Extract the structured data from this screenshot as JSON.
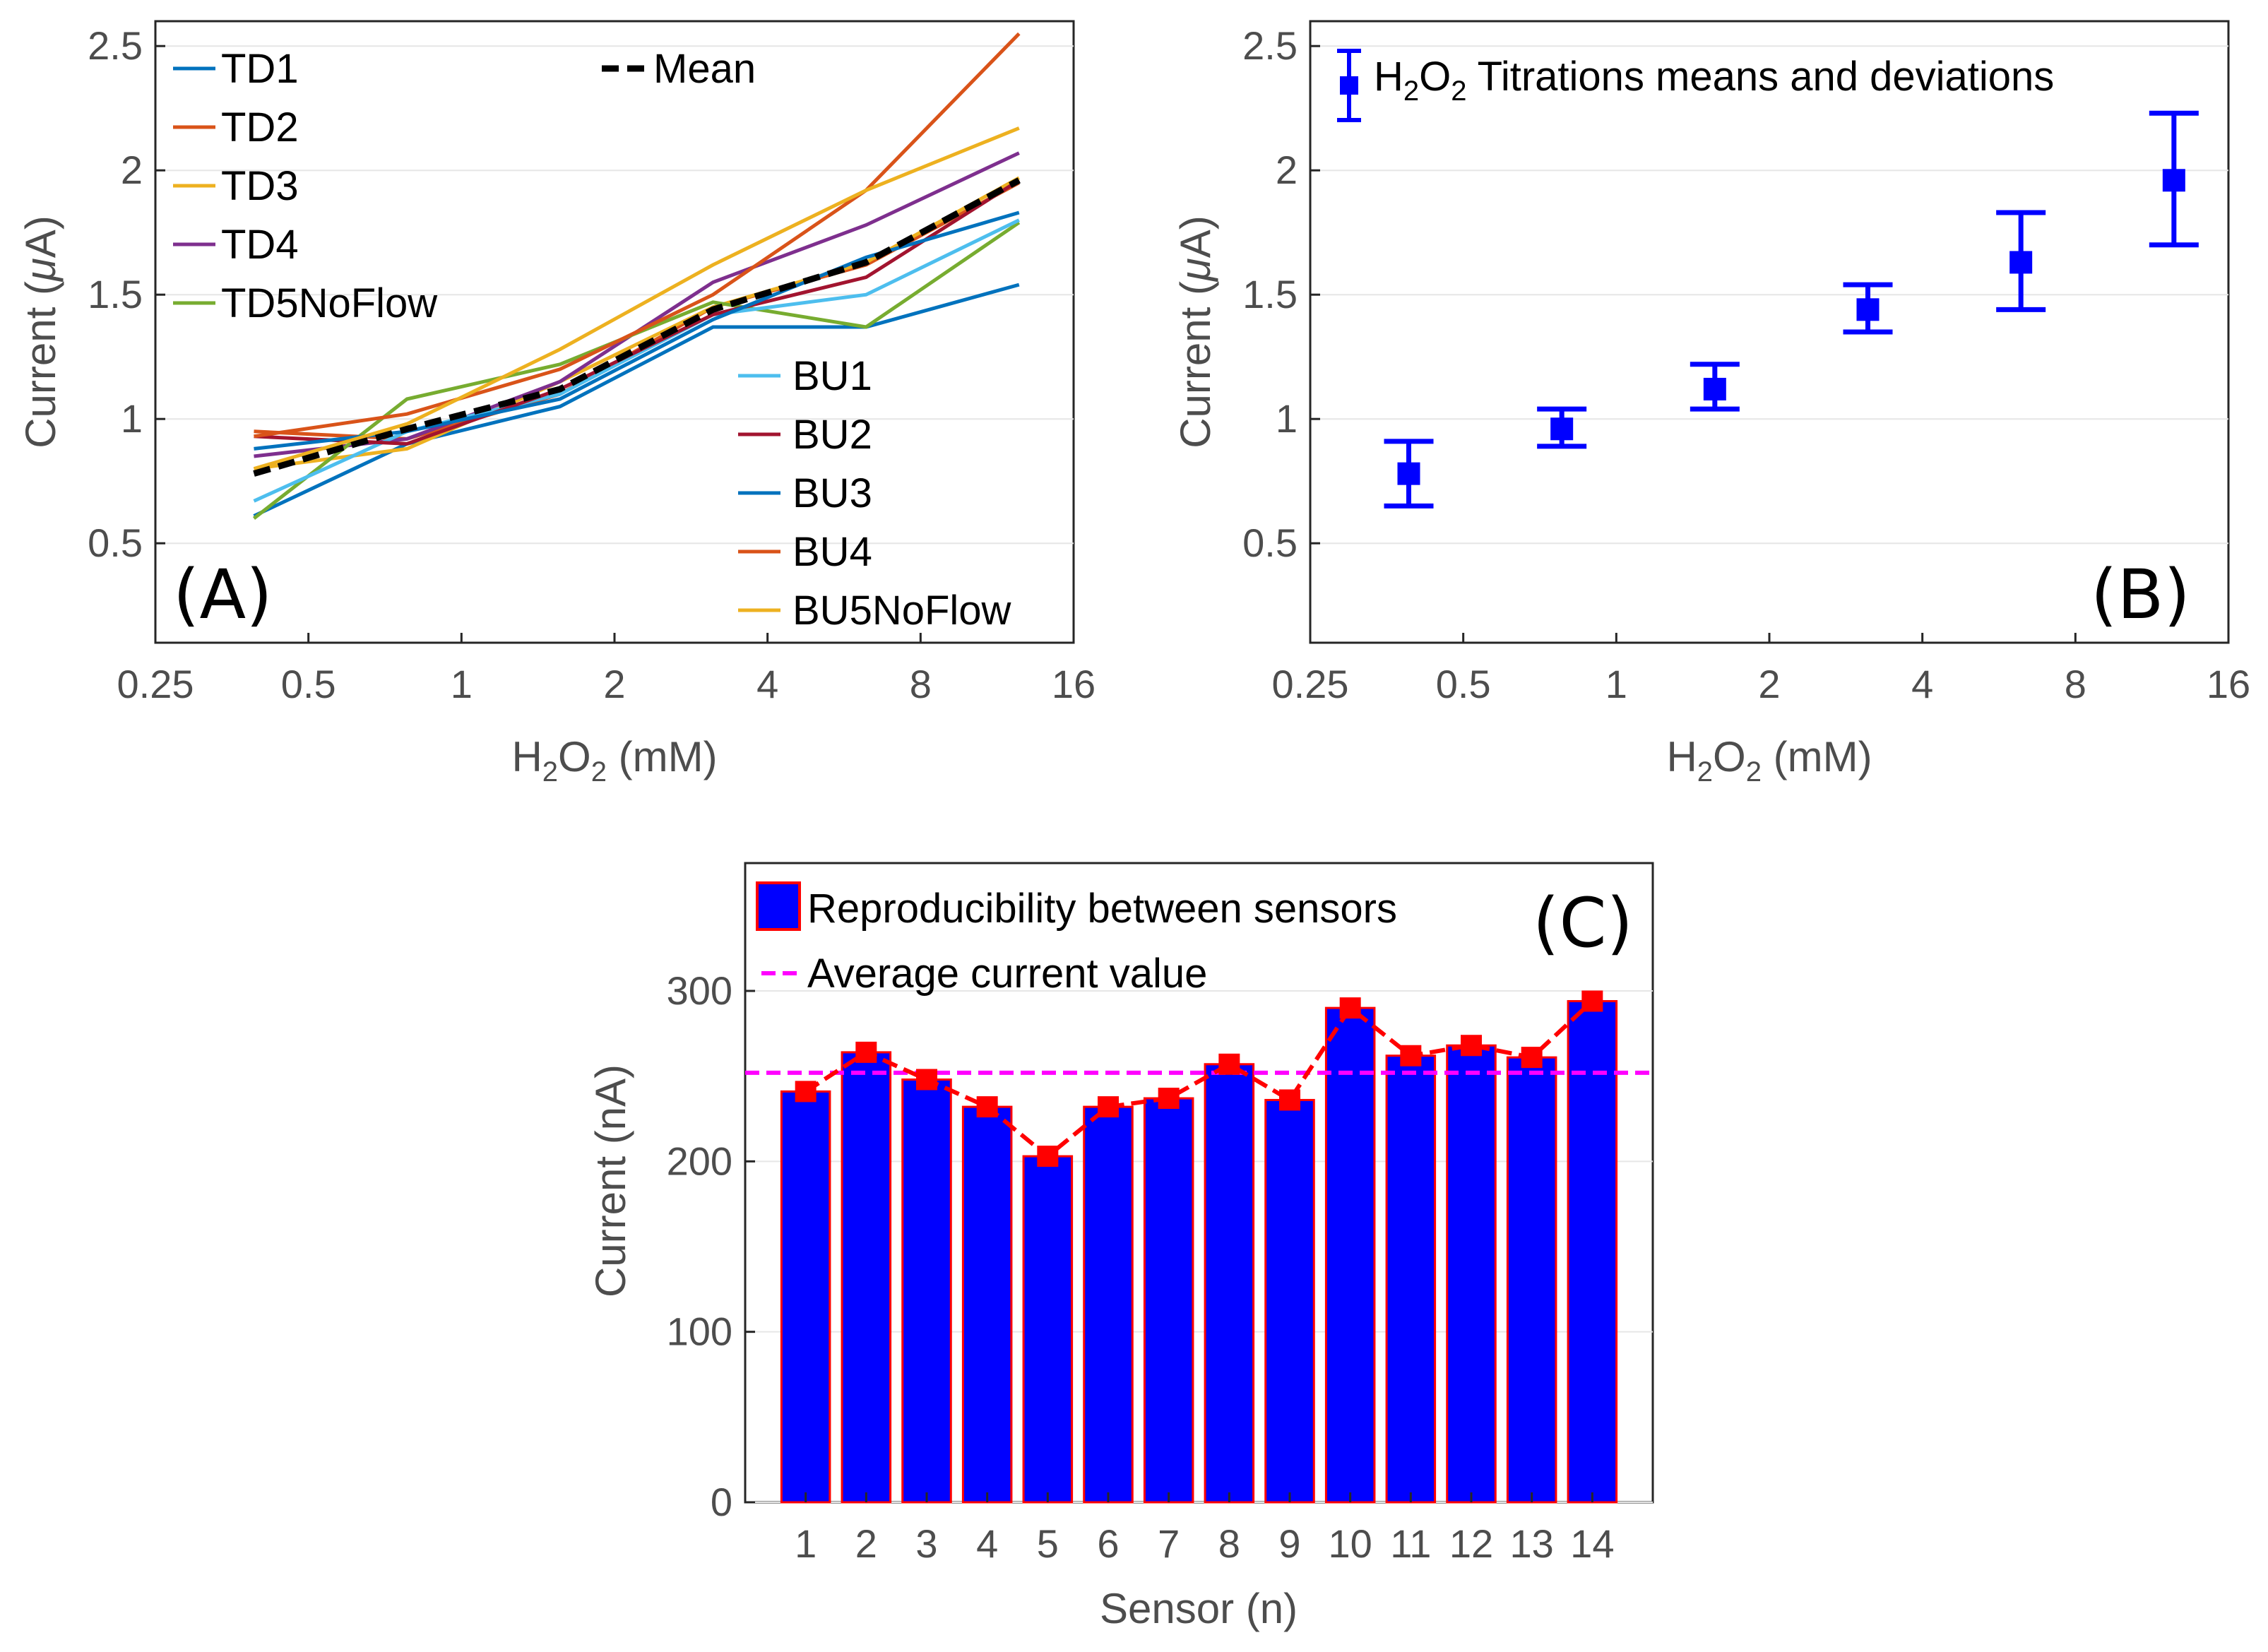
{
  "chart_data": [
    {
      "type": "line",
      "panel_label": "(A)",
      "xscale": "log2",
      "xlim": [
        0.25,
        16
      ],
      "ylim": [
        0.1,
        2.6
      ],
      "xticks": [
        "0.25",
        "0.5",
        "1",
        "2",
        "4",
        "8",
        "16"
      ],
      "yticks": [
        "0.5",
        "1",
        "1.5",
        "2",
        "2.5"
      ],
      "xlabel_main": "H",
      "xlabel_sub1": "2",
      "xlabel_mid": "O",
      "xlabel_sub2": "2",
      "xlabel_unit": " (mM)",
      "ylabel_pre": "Current (",
      "ylabel_mu": "μ",
      "ylabel_post": "A)",
      "x": [
        0.390625,
        0.78125,
        1.5625,
        3.125,
        6.25,
        12.5
      ],
      "series": [
        {
          "name": "TD1",
          "color": "#0072BD",
          "values": [
            0.61,
            0.9,
            1.05,
            1.37,
            1.37,
            1.54
          ]
        },
        {
          "name": "TD2",
          "color": "#D95319",
          "values": [
            0.95,
            0.92,
            1.1,
            1.45,
            1.62,
            1.95
          ]
        },
        {
          "name": "TD3",
          "color": "#EDB120",
          "values": [
            0.8,
            0.88,
            1.15,
            1.45,
            1.63,
            1.97
          ]
        },
        {
          "name": "TD4",
          "color": "#7E2F8E",
          "values": [
            0.85,
            0.92,
            1.15,
            1.55,
            1.78,
            2.07
          ]
        },
        {
          "name": "TD5NoFlow",
          "color": "#77AC30",
          "values": [
            0.6,
            1.08,
            1.22,
            1.47,
            1.37,
            1.79
          ]
        },
        {
          "name": "BU1",
          "color": "#4DBEEE",
          "values": [
            0.67,
            0.95,
            1.1,
            1.42,
            1.5,
            1.8
          ]
        },
        {
          "name": "BU2",
          "color": "#A2142F",
          "values": [
            0.93,
            0.9,
            1.12,
            1.42,
            1.57,
            1.96
          ]
        },
        {
          "name": "BU3",
          "color": "#0072BD",
          "values": [
            0.88,
            0.95,
            1.08,
            1.4,
            1.65,
            1.83
          ]
        },
        {
          "name": "BU4",
          "color": "#D95319",
          "values": [
            0.93,
            1.02,
            1.2,
            1.5,
            1.92,
            2.55
          ]
        },
        {
          "name": "BU5NoFlow",
          "color": "#EDB120",
          "values": [
            0.8,
            0.98,
            1.28,
            1.62,
            1.92,
            2.17
          ]
        }
      ],
      "mean": {
        "name": "Mean",
        "color": "#000000",
        "values": [
          0.78,
          0.96,
          1.12,
          1.44,
          1.63,
          1.96
        ]
      }
    },
    {
      "type": "errorbar",
      "panel_label": "(B)",
      "xscale": "log2",
      "xlim": [
        0.25,
        16
      ],
      "ylim": [
        0.1,
        2.6
      ],
      "xticks": [
        "0.25",
        "0.5",
        "1",
        "2",
        "4",
        "8",
        "16"
      ],
      "yticks": [
        "0.5",
        "1",
        "1.5",
        "2",
        "2.5"
      ],
      "xlabel_main": "H",
      "xlabel_sub1": "2",
      "xlabel_mid": "O",
      "xlabel_sub2": "2",
      "xlabel_unit": " (mM)",
      "ylabel_pre": "Current (",
      "ylabel_mu": "μ",
      "ylabel_post": "A)",
      "legend_main1": "H",
      "legend_sub1": "2",
      "legend_main2": "O",
      "legend_sub2": "2",
      "legend_rest": " Titrations means and deviations",
      "color": "#0000FF",
      "x": [
        0.390625,
        0.78125,
        1.5625,
        3.125,
        6.25,
        12.5
      ],
      "mean": [
        0.78,
        0.96,
        1.12,
        1.44,
        1.63,
        1.96
      ],
      "low": [
        0.65,
        0.89,
        1.04,
        1.35,
        1.44,
        1.7
      ],
      "high": [
        0.91,
        1.04,
        1.22,
        1.54,
        1.83,
        2.23
      ]
    },
    {
      "type": "bar",
      "panel_label": "(C)",
      "categories": [
        "1",
        "2",
        "3",
        "4",
        "5",
        "6",
        "7",
        "8",
        "9",
        "10",
        "11",
        "12",
        "13",
        "14"
      ],
      "values": [
        241,
        264,
        248,
        232,
        203,
        232,
        237,
        257,
        236,
        290,
        262,
        268,
        261,
        294
      ],
      "ylim": [
        0,
        375
      ],
      "yticks": [
        "0",
        "100",
        "200",
        "300"
      ],
      "xlabel": "Sensor (n)",
      "ylabel": "Current (nA)",
      "bar_color": "#0000FF",
      "edge_color": "#FF0000",
      "average": 252,
      "average_color": "#FF00FF",
      "legend": [
        "Reproducibility between sensors",
        "Average current value"
      ]
    }
  ]
}
